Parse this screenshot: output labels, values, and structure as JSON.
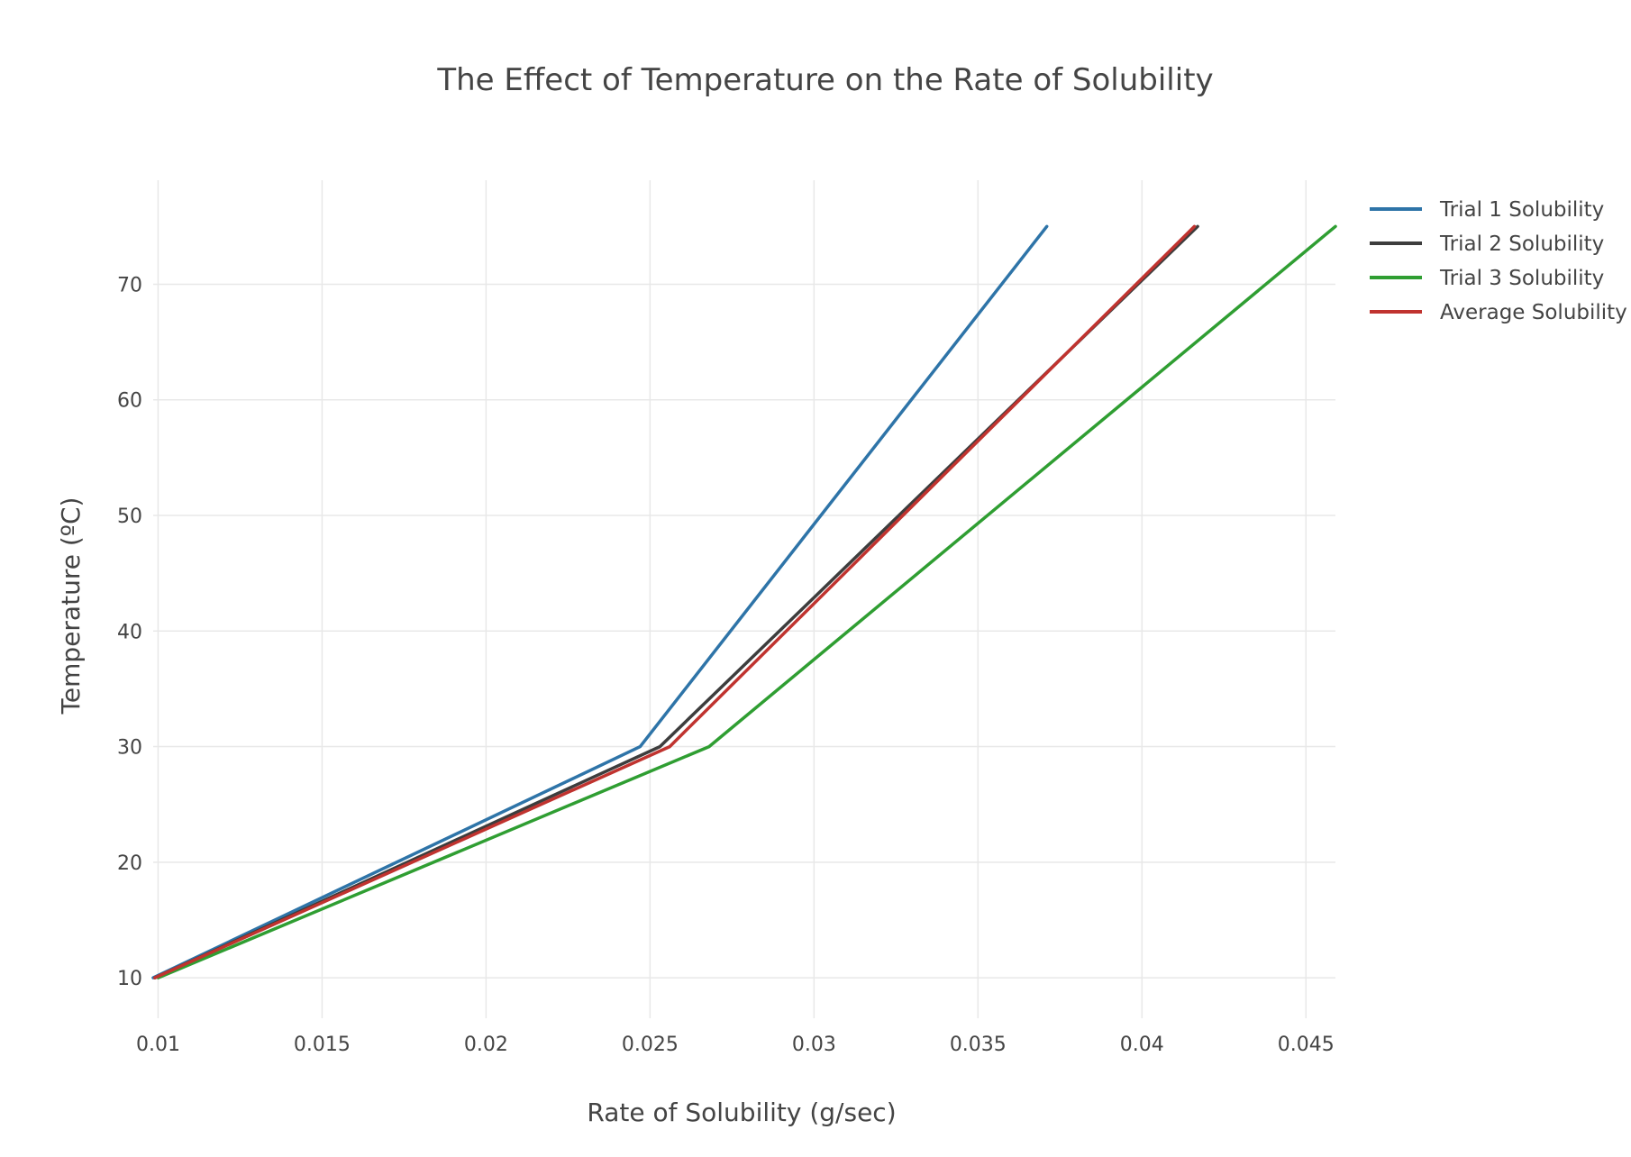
{
  "chart_data": {
    "type": "line",
    "title": "The Effect of Temperature on the Rate of Solubility",
    "xlabel": "Rate of Solubility  (g/sec)",
    "ylabel": "Temperature (ºC)",
    "xlim": [
      0.00985,
      0.0459
    ],
    "ylim": [
      6.5,
      79
    ],
    "x_ticks": [
      0.01,
      0.015,
      0.02,
      0.025,
      0.03,
      0.035,
      0.04,
      0.045
    ],
    "x_tick_labels": [
      "0.01",
      "0.015",
      "0.02",
      "0.025",
      "0.03",
      "0.035",
      "0.04",
      "0.045"
    ],
    "y_ticks": [
      10,
      20,
      30,
      40,
      50,
      60,
      70
    ],
    "y_tick_labels": [
      "10",
      "20",
      "30",
      "40",
      "50",
      "60",
      "70"
    ],
    "grid": true,
    "legend_position": "top-right",
    "series": [
      {
        "name": "Trial 1 Solubility",
        "color": "#2E74A8",
        "x": [
          0.00985,
          0.0247,
          0.0371
        ],
        "y": [
          10,
          30,
          75
        ]
      },
      {
        "name": "Trial 2 Solubility",
        "color": "#3D3D3D",
        "x": [
          0.0099,
          0.0253,
          0.0417
        ],
        "y": [
          10,
          30,
          75
        ]
      },
      {
        "name": "Trial 3 Solubility",
        "color": "#2F9E32",
        "x": [
          0.01,
          0.0268,
          0.0459
        ],
        "y": [
          10,
          30,
          75
        ]
      },
      {
        "name": "Average Solubility",
        "color": "#C0332F",
        "x": [
          0.0099,
          0.0256,
          0.0416
        ],
        "y": [
          10,
          30,
          75
        ]
      }
    ]
  }
}
